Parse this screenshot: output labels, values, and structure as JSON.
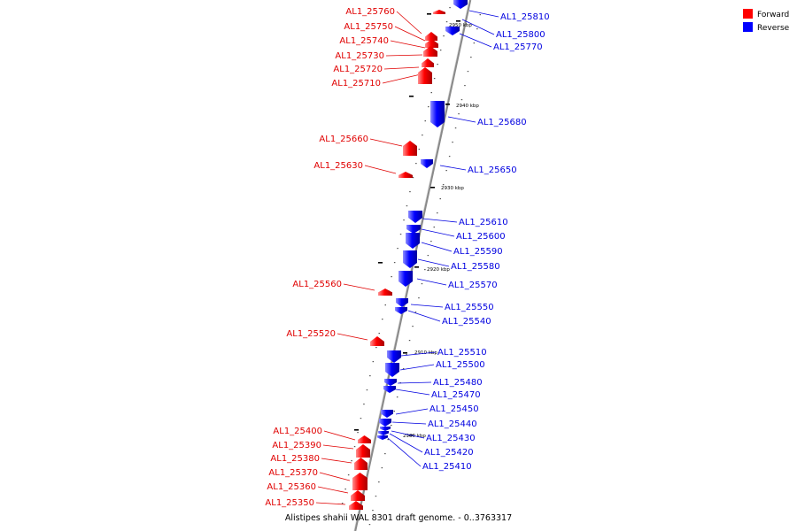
{
  "caption": "Alistipes shahii WAL 8301 draft genome. - 0..3763317",
  "legend": [
    {
      "label": "Forward",
      "color": "#ff0000"
    },
    {
      "label": "Reverse",
      "color": "#0000ff"
    }
  ],
  "colors": {
    "forward": "#ff0000",
    "reverse": "#0000ff",
    "backbone": "#888888",
    "forward_label": "#e00000",
    "reverse_label": "#0000e0"
  },
  "ticks": [
    "2950 kbp",
    "2940 kbp",
    "2930 kbp",
    "2920 kbp",
    "2910 kbp",
    "2900 kbp"
  ],
  "forward_genes": [
    "AL1_25760",
    "AL1_25750",
    "AL1_25740",
    "AL1_25730",
    "AL1_25720",
    "AL1_25710",
    "AL1_25660",
    "AL1_25630",
    "AL1_25560",
    "AL1_25520",
    "AL1_25400",
    "AL1_25390",
    "AL1_25380",
    "AL1_25370",
    "AL1_25360",
    "AL1_25350"
  ],
  "reverse_genes": [
    "AL1_25810",
    "AL1_25800",
    "AL1_25770",
    "AL1_25680",
    "AL1_25650",
    "AL1_25610",
    "AL1_25600",
    "AL1_25590",
    "AL1_25580",
    "AL1_25570",
    "AL1_25550",
    "AL1_25540",
    "AL1_25510",
    "AL1_25500",
    "AL1_25480",
    "AL1_25470",
    "AL1_25450",
    "AL1_25440",
    "AL1_25430",
    "AL1_25420",
    "AL1_25410"
  ]
}
